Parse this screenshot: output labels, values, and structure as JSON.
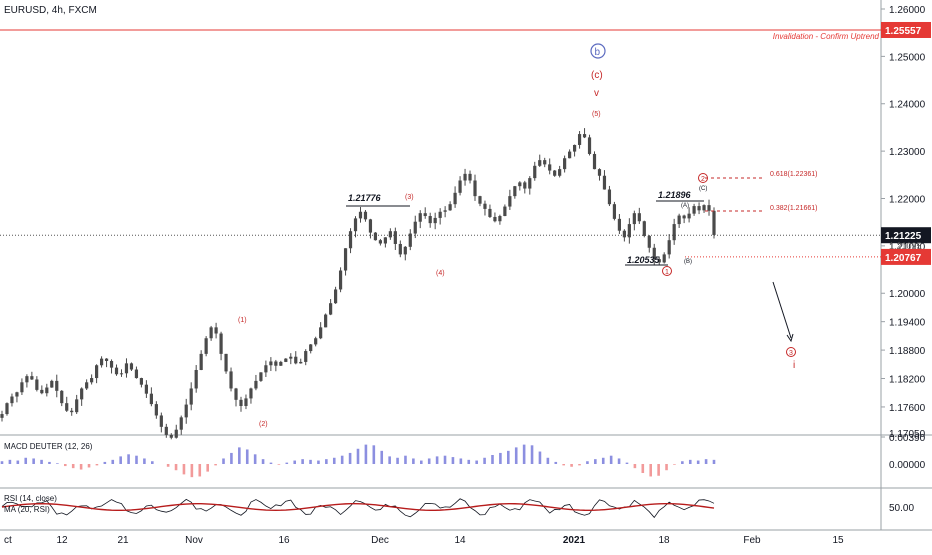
{
  "header": {
    "symbol": "EURUSD, 4h, FXCM"
  },
  "chart_data": {
    "type": "candlestick",
    "price_axis": {
      "ticks": [
        "1.26000",
        "1.25000",
        "1.24000",
        "1.23000",
        "1.22000",
        "1.21000",
        "1.20000",
        "1.19400",
        "1.18800",
        "1.18200",
        "1.17600",
        "1.17050"
      ],
      "tick_values": [
        1.26,
        1.25,
        1.24,
        1.23,
        1.22,
        1.21,
        1.2,
        1.194,
        1.188,
        1.182,
        1.176,
        1.1705
      ],
      "current_price": "1.21225",
      "invalidation_price": "1.25557",
      "support_price": "1.20767",
      "hidden_label": "1.21095"
    },
    "time_axis": {
      "labels": [
        "ct",
        "12",
        "21",
        "Nov",
        "16",
        "Dec",
        "14",
        "2021",
        "18",
        "Feb",
        "15"
      ],
      "bold": [
        "2021"
      ]
    },
    "annotations": {
      "invalidation_text": "Invalidation - Confirm Uptrend",
      "price_labels": [
        "1.21776",
        "1.21896",
        "1.20535"
      ],
      "fib_levels": [
        "0.618(1.22361)",
        "0.382(1.21661)"
      ],
      "waves": [
        "(1)",
        "(2)",
        "(3)",
        "(4)",
        "(5)",
        "(c)",
        "v",
        "b",
        "(A)",
        "(B)",
        "(C)",
        "1",
        "2",
        "3",
        "i"
      ]
    },
    "close_series": [
      1.1745,
      1.1768,
      1.1782,
      1.1791,
      1.1812,
      1.1825,
      1.1818,
      1.1796,
      1.1789,
      1.1801,
      1.1815,
      1.1794,
      1.1768,
      1.1752,
      1.1749,
      1.1776,
      1.1799,
      1.1812,
      1.1821,
      1.1848,
      1.1862,
      1.1857,
      1.1843,
      1.1829,
      1.1831,
      1.1852,
      1.1839,
      1.1821,
      1.1807,
      1.1788,
      1.1766,
      1.1742,
      1.1718,
      1.1701,
      1.1695,
      1.1712,
      1.1738,
      1.1765,
      1.1799,
      1.1838,
      1.1872,
      1.1905,
      1.1928,
      1.1915,
      1.1872,
      1.1835,
      1.1799,
      1.1775,
      1.1762,
      1.1778,
      1.1799,
      1.1815,
      1.1833,
      1.1848,
      1.1856,
      1.1847,
      1.1855,
      1.1862,
      1.1866,
      1.1852,
      1.1855,
      1.1878,
      1.1892,
      1.1905,
      1.1928,
      1.1955,
      1.1979,
      1.2008,
      1.2048,
      1.2095,
      1.2131,
      1.2158,
      1.2172,
      1.2156,
      1.2128,
      1.2112,
      1.2105,
      1.2118,
      1.2131,
      1.2104,
      1.2082,
      1.2098,
      1.2126,
      1.2151,
      1.2169,
      1.2163,
      1.2148,
      1.2159,
      1.2172,
      1.2175,
      1.2188,
      1.2212,
      1.2238,
      1.2252,
      1.2238,
      1.2205,
      1.2189,
      1.2178,
      1.2161,
      1.2152,
      1.2163,
      1.2183,
      1.2205,
      1.2226,
      1.2234,
      1.2221,
      1.2243,
      1.2269,
      1.2281,
      1.2272,
      1.2259,
      1.2248,
      1.2262,
      1.2285,
      1.2299,
      1.2313,
      1.2336,
      1.2329,
      1.2294,
      1.2262,
      1.2248,
      1.2219,
      1.2188,
      1.2157,
      1.2132,
      1.2118,
      1.2146,
      1.2169,
      1.2152,
      1.2121,
      1.2096,
      1.2072,
      1.2065,
      1.2082,
      1.2112,
      1.2146,
      1.2164,
      1.2158,
      1.2168,
      1.2184,
      1.2175,
      1.2186,
      1.2174,
      1.2123
    ],
    "macd": {
      "label": "MACD DEUTER (12, 26)",
      "axis_ticks": [
        "0.00390",
        "0.00000"
      ],
      "axis_values": [
        0.0039,
        0.0
      ],
      "values": [
        0.0004,
        0.0006,
        0.0005,
        0.0009,
        0.0008,
        0.0006,
        0.0003,
        0.0001,
        -0.0003,
        -0.0006,
        -0.0008,
        -0.0005,
        -0.0002,
        0.0003,
        0.0006,
        0.0011,
        0.0014,
        0.0012,
        0.0008,
        0.0004,
        0.0,
        -0.0004,
        -0.0009,
        -0.0015,
        -0.0019,
        -0.0018,
        -0.0011,
        -0.0002,
        0.0008,
        0.0016,
        0.0024,
        0.0021,
        0.0014,
        0.0007,
        0.0002,
        -0.0001,
        0.0002,
        0.0005,
        0.0007,
        0.0006,
        0.0005,
        0.0007,
        0.0009,
        0.0012,
        0.0016,
        0.0022,
        0.0028,
        0.0027,
        0.0019,
        0.0011,
        0.0009,
        0.0012,
        0.0008,
        0.0005,
        0.0008,
        0.0011,
        0.0012,
        0.001,
        0.0008,
        0.0006,
        0.0005,
        0.0009,
        0.0013,
        0.0016,
        0.0019,
        0.0024,
        0.0028,
        0.0027,
        0.0018,
        0.0009,
        0.0003,
        -0.0002,
        -0.0004,
        -0.0002,
        0.0004,
        0.0007,
        0.0009,
        0.0012,
        0.0008,
        0.0002,
        -0.0006,
        -0.0013,
        -0.0018,
        -0.0017,
        -0.0009,
        -0.0001,
        0.0004,
        0.0006,
        0.0005,
        0.0007,
        0.0006
      ]
    },
    "rsi": {
      "label": "RSI (14, close)",
      "ma_label": "MA (20, RSI)",
      "axis_ticks": [
        "50.00"
      ],
      "axis_values": [
        50
      ]
    },
    "colors": {
      "candle": "#4a4a4a",
      "macd_pos": "#8c8fe0",
      "macd_neg": "#f29a9a",
      "wave_red": "#c62828",
      "wave_blue": "#5c6bc0",
      "invalidation": "#e53935",
      "price_tag_black": "#131722",
      "rsi_line": "#131722",
      "rsi_ma": "#b71c1c"
    }
  }
}
